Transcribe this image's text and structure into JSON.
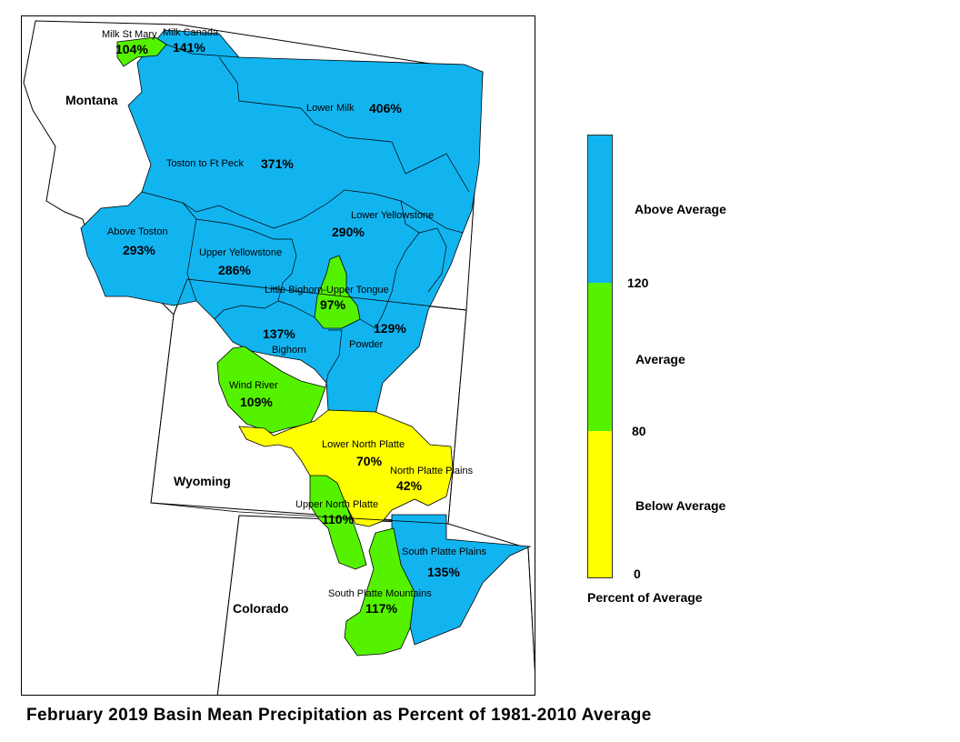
{
  "title": "February 2019 Basin Mean Precipitation as Percent of 1981-2010 Average",
  "colors": {
    "above": "#12b4f0",
    "average": "#55f200",
    "below": "#ffff00",
    "outline": "#000000"
  },
  "states": [
    {
      "id": "montana",
      "label": "Montana"
    },
    {
      "id": "wyoming",
      "label": "Wyoming"
    },
    {
      "id": "colorado",
      "label": "Colorado"
    }
  ],
  "basins": [
    {
      "id": "milk-st-mary",
      "name": "Milk St Mary",
      "pct": "104%",
      "category": "average"
    },
    {
      "id": "milk-canada",
      "name": "Milk Canada",
      "pct": "141%",
      "category": "above"
    },
    {
      "id": "lower-milk",
      "name": "Lower Milk",
      "pct": "406%",
      "category": "above"
    },
    {
      "id": "toston-ft-peck",
      "name": "Toston to Ft Peck",
      "pct": "371%",
      "category": "above"
    },
    {
      "id": "above-toston",
      "name": "Above Toston",
      "pct": "293%",
      "category": "above"
    },
    {
      "id": "lower-yellowstone",
      "name": "Lower Yellowstone",
      "pct": "290%",
      "category": "above"
    },
    {
      "id": "upper-yellowstone",
      "name": "Upper Yellowstone",
      "pct": "286%",
      "category": "above"
    },
    {
      "id": "little-bighorn",
      "name": "Little Bighorn-Upper Tongue",
      "pct": "97%",
      "category": "average"
    },
    {
      "id": "bighorn",
      "name": "Bighorn",
      "pct": "137%",
      "category": "above"
    },
    {
      "id": "powder",
      "name": "Powder",
      "pct": "129%",
      "category": "above"
    },
    {
      "id": "wind-river",
      "name": "Wind River",
      "pct": "109%",
      "category": "average"
    },
    {
      "id": "lower-north-platte",
      "name": "Lower North Platte",
      "pct": "70%",
      "category": "below"
    },
    {
      "id": "north-platte-plains",
      "name": "North Platte Plains",
      "pct": "42%",
      "category": "below"
    },
    {
      "id": "upper-north-platte",
      "name": "Upper North Platte",
      "pct": "110%",
      "category": "average"
    },
    {
      "id": "south-platte-plains",
      "name": "South Platte Plains",
      "pct": "135%",
      "category": "above"
    },
    {
      "id": "south-platte-mountains",
      "name": "South Platte Mountains",
      "pct": "117%",
      "category": "average"
    }
  ],
  "legend": {
    "title": "Percent of Average",
    "classes": [
      {
        "label": "Above Average",
        "color": "#12b4f0"
      },
      {
        "label": "Average",
        "color": "#55f200"
      },
      {
        "label": "Below Average",
        "color": "#ffff00"
      }
    ],
    "breaks": [
      "120",
      "80",
      "0"
    ]
  }
}
